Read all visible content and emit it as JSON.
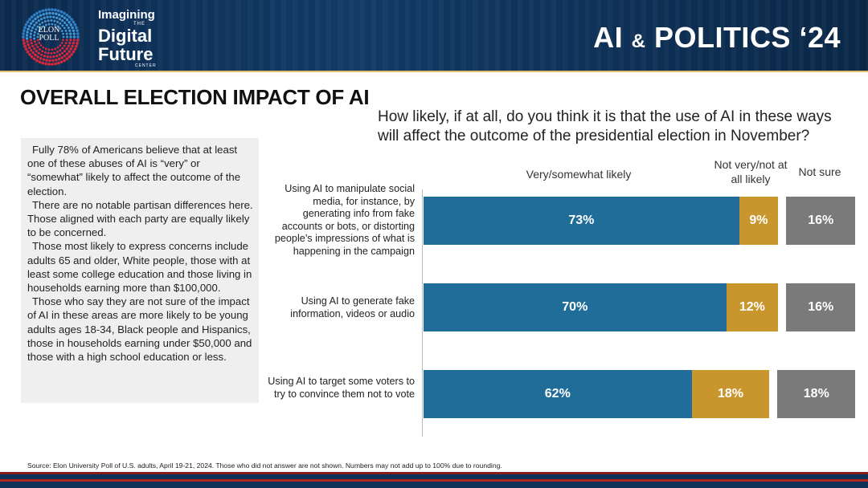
{
  "header": {
    "logo_text_1": "ELON",
    "logo_text_2": "POLL",
    "brand_line1": "Imagining",
    "brand_the": "THE",
    "brand_line2": "Digital",
    "brand_line3": "Future",
    "brand_center": "CENTER",
    "title_part1": "AI ",
    "title_amp": "&",
    "title_part2": " POLITICS ‘24"
  },
  "page_title": "OVERALL ELECTION IMPACT OF AI",
  "summary": {
    "paragraphs": [
      "Fully 78% of Americans believe that at least one of these abuses of AI is “very” or “somewhat” likely to affect the outcome of the election.",
      "There are no notable partisan differences here. Those aligned with each party are equally likely to be concerned.",
      "Those most likely to express concerns include adults 65 and older, White people, those with at least some college education and those living in households earning more than $100,000.",
      "Those who say they are not sure of the impact of AI in these areas are more likely to be young adults ages 18-34, Black people and Hispanics, those in households earning under $50,000 and those with a high school education or less."
    ]
  },
  "chart_data": {
    "type": "bar",
    "orientation": "horizontal",
    "stacked": true,
    "title": "How likely, if at all, do you think it is that the use of AI in these ways will affect the outcome of the presidential election in November?",
    "categories": [
      "Using AI to manipulate social media, for instance, by generating info from fake accounts or bots, or distorting people’s impressions of what is happening in the campaign",
      "Using AI to generate fake information, videos or audio",
      "Using AI to target some voters to try to convince them not to vote"
    ],
    "series": [
      {
        "name": "Very/somewhat likely",
        "values": [
          73,
          70,
          62
        ],
        "labels": [
          "73%",
          "70%",
          "62%"
        ],
        "color": "#1f6d98"
      },
      {
        "name": "Not very/not at all likely",
        "values": [
          9,
          12,
          18
        ],
        "labels": [
          "9%",
          "12%",
          "18%"
        ],
        "color": "#c9962e"
      },
      {
        "name": "Not sure",
        "values": [
          16,
          16,
          18
        ],
        "labels": [
          "16%",
          "16%",
          "18%"
        ],
        "color": "#7a7a7a"
      }
    ],
    "legend_position": "top",
    "grid": false
  },
  "source": "Source: Elon University Poll of U.S. adults, April 19-21, 2024. Those who did not answer are not shown. Numbers may not add up to 100% due to rounding."
}
